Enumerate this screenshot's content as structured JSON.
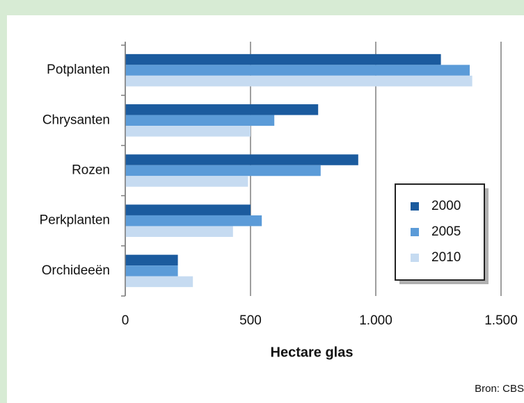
{
  "chart_data": {
    "type": "barh",
    "categories": [
      "Potplanten",
      "Chrysanten",
      "Rozen",
      "Perkplanten",
      "Orchideeën"
    ],
    "series": [
      {
        "name": "2000",
        "color": "#1b5b9e",
        "values": [
          1260,
          770,
          930,
          500,
          210
        ]
      },
      {
        "name": "2005",
        "color": "#5b9bd8",
        "values": [
          1375,
          595,
          780,
          545,
          210
        ]
      },
      {
        "name": "2010",
        "color": "#c6dbf1",
        "values": [
          1385,
          500,
          490,
          430,
          270
        ]
      }
    ],
    "xlim": [
      0,
      1500
    ],
    "xticks": [
      0,
      500,
      {
        "value": 1000,
        "label": "1.000"
      },
      {
        "value": 1500,
        "label": "1.500"
      }
    ],
    "xlabel": "Hectare glas",
    "source": "Bron: CBS",
    "grid": true,
    "legend": "lower right"
  }
}
